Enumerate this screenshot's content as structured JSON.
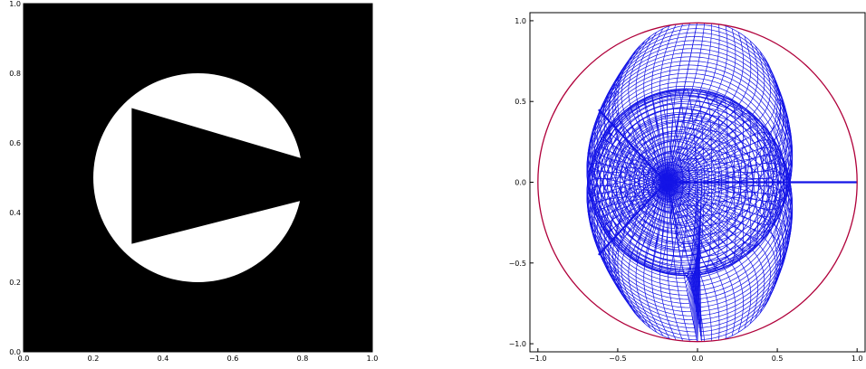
{
  "chart_data": [
    {
      "type": "heatmap",
      "title": "",
      "xlabel": "",
      "ylabel": "",
      "xlim": [
        0.0,
        1.0
      ],
      "ylim": [
        0.0,
        1.0
      ],
      "xticks": [
        "0.0",
        "0.2",
        "0.4",
        "0.6",
        "0.8",
        "1.0"
      ],
      "yticks": [
        "0.0",
        "0.2",
        "0.4",
        "0.6",
        "0.8",
        "1.0"
      ],
      "colormap": "gray",
      "colors": {
        "background": "#000000",
        "disk": "#ffffff",
        "wedge": "#000000"
      },
      "disk": {
        "center": [
          0.5,
          0.5
        ],
        "radius": 0.3
      },
      "wedge": {
        "vertices": [
          [
            0.31,
            0.7
          ],
          [
            0.31,
            0.31
          ],
          [
            0.8,
            0.555
          ],
          [
            0.8,
            0.435
          ]
        ]
      },
      "grid": false,
      "legend": "none"
    },
    {
      "type": "line",
      "title": "",
      "xlabel": "",
      "ylabel": "",
      "xlim": [
        -1.05,
        1.05
      ],
      "ylim": [
        -1.05,
        1.05
      ],
      "xticks": [
        "−1.0",
        "−0.5",
        "0.0",
        "0.5",
        "1.0"
      ],
      "yticks": [
        "1.0",
        "0.5",
        "0.0",
        "−0.5",
        "−1.0"
      ],
      "colors": {
        "mesh": "#1414e6",
        "boundary": "#b0003a"
      },
      "circle_radius": 1.0,
      "apex": [
        -0.2,
        0.0
      ],
      "mesh_lines_per_direction": 70,
      "grid": false,
      "legend": "none"
    }
  ]
}
